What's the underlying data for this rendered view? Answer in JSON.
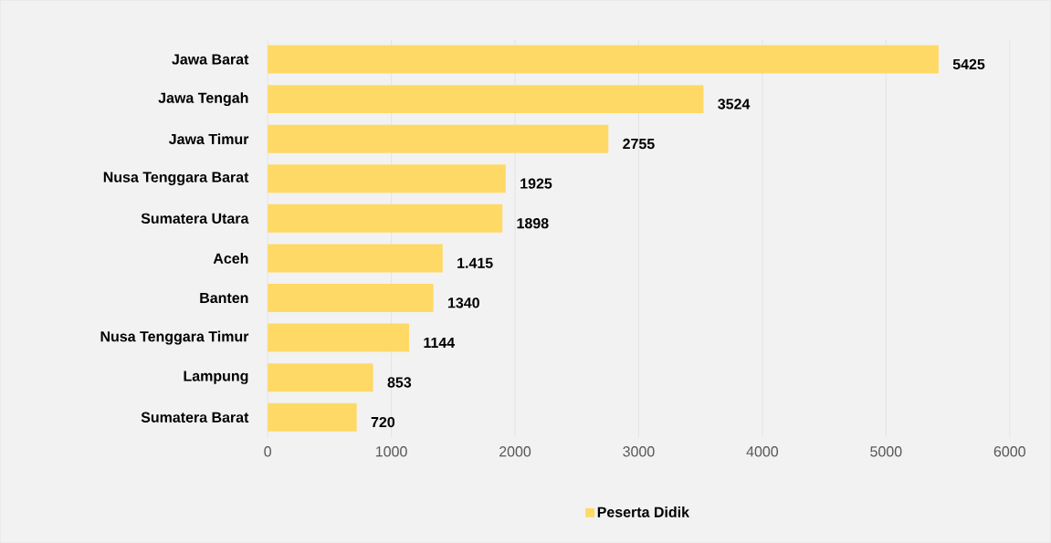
{
  "chart_data": {
    "type": "bar",
    "orientation": "horizontal",
    "categories": [
      "Jawa Barat",
      "Jawa Tengah",
      "Jawa Timur",
      "Nusa Tenggara Barat",
      "Sumatera Utara",
      "Aceh",
      "Banten",
      "Nusa Tenggara Timur",
      "Lampung",
      "Sumatera Barat"
    ],
    "series": [
      {
        "name": "Peserta Didik",
        "color": "#ffd966",
        "values": [
          5425,
          3524,
          2755,
          1925,
          1898,
          1415,
          1340,
          1144,
          853,
          720
        ],
        "value_labels": [
          "5425",
          "3524",
          "2755",
          "1925",
          "1898",
          "1.415",
          "1340",
          "1144",
          "853",
          "720"
        ]
      }
    ],
    "xlim": [
      0,
      6000
    ],
    "xticks": [
      0,
      1000,
      2000,
      3000,
      4000,
      5000,
      6000
    ],
    "grid": "x",
    "legend": "bottom"
  }
}
